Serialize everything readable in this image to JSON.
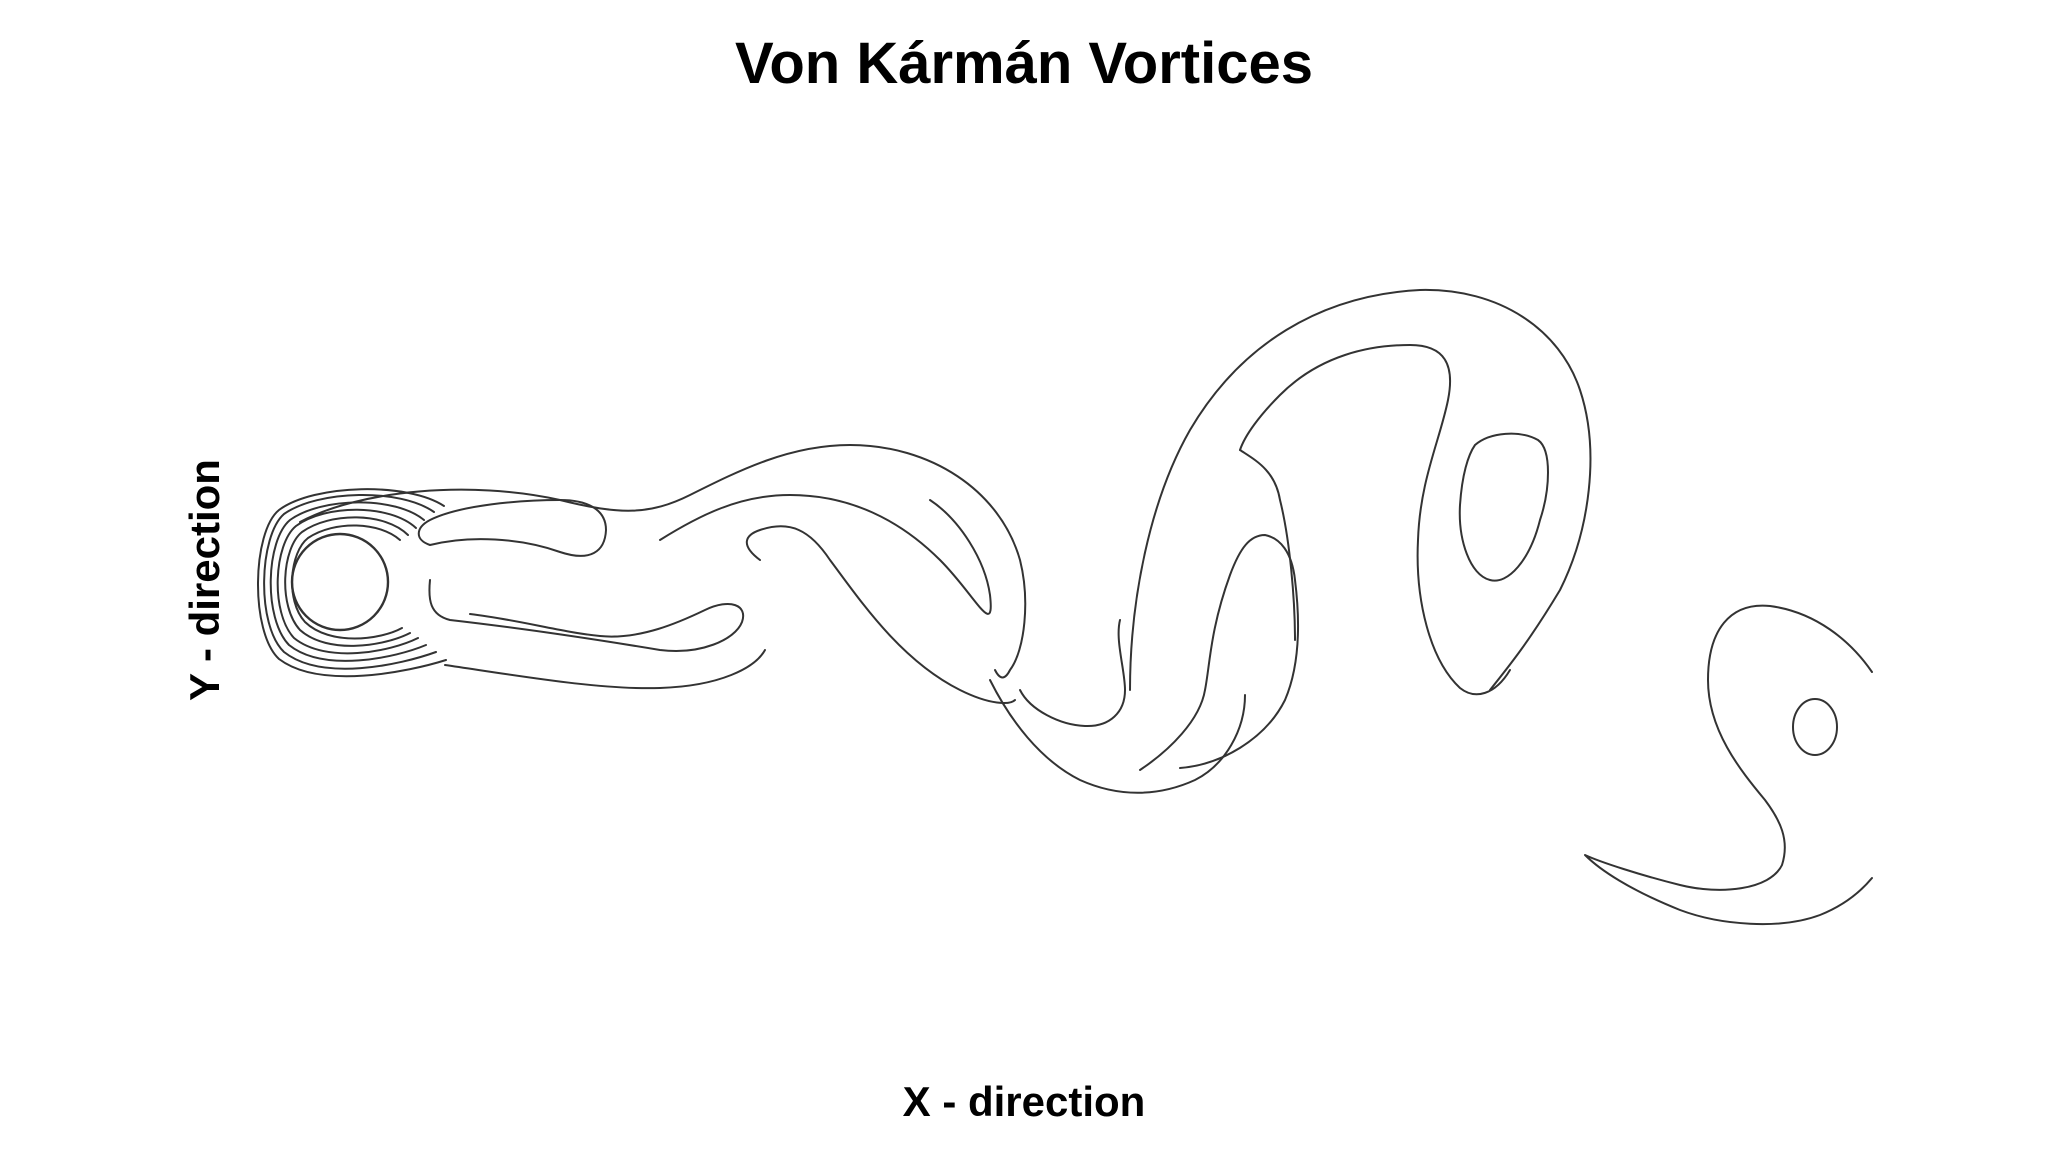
{
  "title": "Von Kármán Vortices",
  "xlabel": "X - direction",
  "ylabel": "Y - direction",
  "colors": {
    "background": "#ffffff",
    "contour_stroke": "#333333",
    "text": "#000000"
  }
}
